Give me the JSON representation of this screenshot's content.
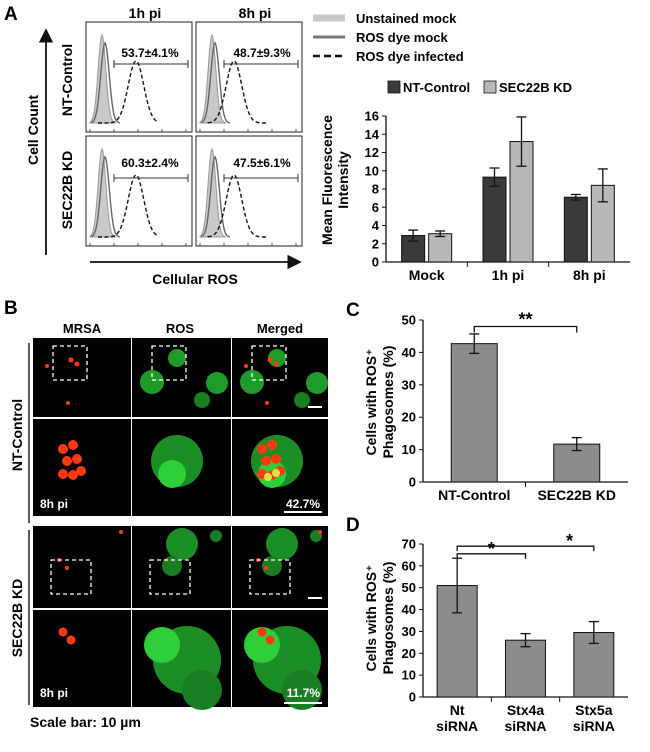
{
  "panels": {
    "A": "A",
    "B": "B",
    "C": "C",
    "D": "D"
  },
  "colors": {
    "dark": "#3a3a3a",
    "light": "#b8b8b8",
    "gray": "#8c8c8c",
    "green": "#2fcf3a",
    "red": "#ff3a10",
    "fill": "#cfcfcf"
  },
  "flow": {
    "columns": [
      "1h pi",
      "8h pi"
    ],
    "rows": [
      "NT-Control",
      "SEC22B KD"
    ],
    "ylabel": "Cell Count",
    "xlabel": "Cellular ROS",
    "percentages": [
      [
        "53.7±4.1%",
        "48.7±9.3%"
      ],
      [
        "60.3±2.4%",
        "47.5±6.1%"
      ]
    ],
    "legend": [
      "Unstained mock",
      "ROS dye mock",
      "ROS dye infected"
    ]
  },
  "microscopy": {
    "columns": [
      "MRSA",
      "ROS",
      "Merged"
    ],
    "rows": [
      "NT-Control",
      "SEC22B KD"
    ],
    "time_labels": [
      "8h pi",
      "8h pi"
    ],
    "percentages": [
      "42.7%",
      "11.7%"
    ],
    "scalebar": "Scale bar: 10 µm"
  },
  "chart_data": [
    {
      "panel": "A",
      "type": "bar",
      "categories": [
        "Mock",
        "1h pi",
        "8h pi"
      ],
      "series": [
        {
          "name": "NT-Control",
          "values": [
            2.9,
            9.3,
            7.1
          ],
          "errors": [
            0.6,
            1.0,
            0.3
          ]
        },
        {
          "name": "SEC22B KD",
          "values": [
            3.1,
            13.2,
            8.4
          ],
          "errors": [
            0.3,
            2.7,
            1.8
          ]
        }
      ],
      "ylabel": "Mean Fluorescence Intensity",
      "ylim": [
        0,
        16
      ],
      "yticks": [
        0,
        2,
        4,
        6,
        8,
        10,
        12,
        14,
        16
      ]
    },
    {
      "panel": "C",
      "type": "bar",
      "categories": [
        "NT-Control",
        "SEC22B KD"
      ],
      "values": [
        42.7,
        11.7
      ],
      "errors": [
        3.0,
        2.0
      ],
      "ylabel": "Cells with ROS⁺ Phagosomes (%)",
      "ylim": [
        0,
        50
      ],
      "yticks": [
        0,
        10,
        20,
        30,
        40,
        50
      ],
      "significance": "**"
    },
    {
      "panel": "D",
      "type": "bar",
      "categories": [
        [
          "Nt",
          "siRNA"
        ],
        [
          "Stx4a",
          "siRNA"
        ],
        [
          "Stx5a",
          "siRNA"
        ]
      ],
      "values": [
        51,
        26,
        29.5
      ],
      "errors": [
        12.5,
        3.0,
        5.0
      ],
      "ylabel": "Cells with ROS⁺ Phagosomes (%)",
      "ylim": [
        0,
        70
      ],
      "yticks": [
        0,
        10,
        20,
        30,
        40,
        50,
        60,
        70
      ],
      "significance": [
        "*",
        "*"
      ]
    }
  ]
}
